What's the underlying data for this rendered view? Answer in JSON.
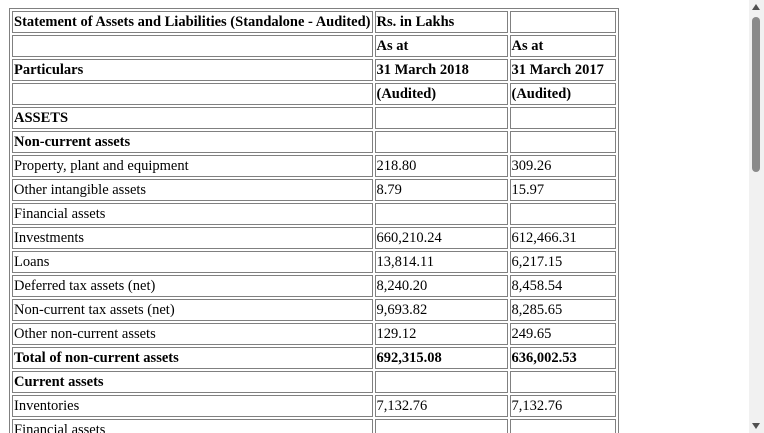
{
  "header": {
    "title": "Statement of Assets and Liabilities (Standalone - Audited)",
    "unit": "Rs. in Lakhs",
    "particulars_label": "Particulars",
    "col1_as_at": "As at",
    "col1_date": "31 March 2018",
    "col1_status": "(Audited)",
    "col2_as_at": "As at",
    "col2_date": "31 March 2017",
    "col2_status": "(Audited)"
  },
  "rows": [
    {
      "label": "ASSETS",
      "v2018": "",
      "v2017": "",
      "bold": true,
      "section": true
    },
    {
      "label": "Non-current assets",
      "v2018": "",
      "v2017": "",
      "bold": true
    },
    {
      "label": "Property, plant and equipment",
      "v2018": "218.80",
      "v2017": "309.26",
      "bold": false
    },
    {
      "label": "Other intangible assets",
      "v2018": "8.79",
      "v2017": "15.97",
      "bold": false
    },
    {
      "label": "Financial assets",
      "v2018": "",
      "v2017": "",
      "bold": false
    },
    {
      "label": "Investments",
      "v2018": "660,210.24",
      "v2017": "612,466.31",
      "bold": false
    },
    {
      "label": "Loans",
      "v2018": "13,814.11",
      "v2017": "6,217.15",
      "bold": false
    },
    {
      "label": "Deferred tax assets (net)",
      "v2018": "8,240.20",
      "v2017": "8,458.54",
      "bold": false
    },
    {
      "label": "Non-current tax assets (net)",
      "v2018": "9,693.82",
      "v2017": "8,285.65",
      "bold": false
    },
    {
      "label": "Other non-current assets",
      "v2018": "129.12",
      "v2017": "249.65",
      "bold": false
    },
    {
      "label": "Total of non-current assets",
      "v2018": "692,315.08",
      "v2017": "636,002.53",
      "bold": true
    },
    {
      "label": "Current assets",
      "v2018": "",
      "v2017": "",
      "bold": true
    },
    {
      "label": "Inventories",
      "v2018": "7,132.76",
      "v2017": "7,132.76",
      "bold": false
    },
    {
      "label": "Financial assets",
      "v2018": "",
      "v2017": "",
      "bold": false
    }
  ]
}
